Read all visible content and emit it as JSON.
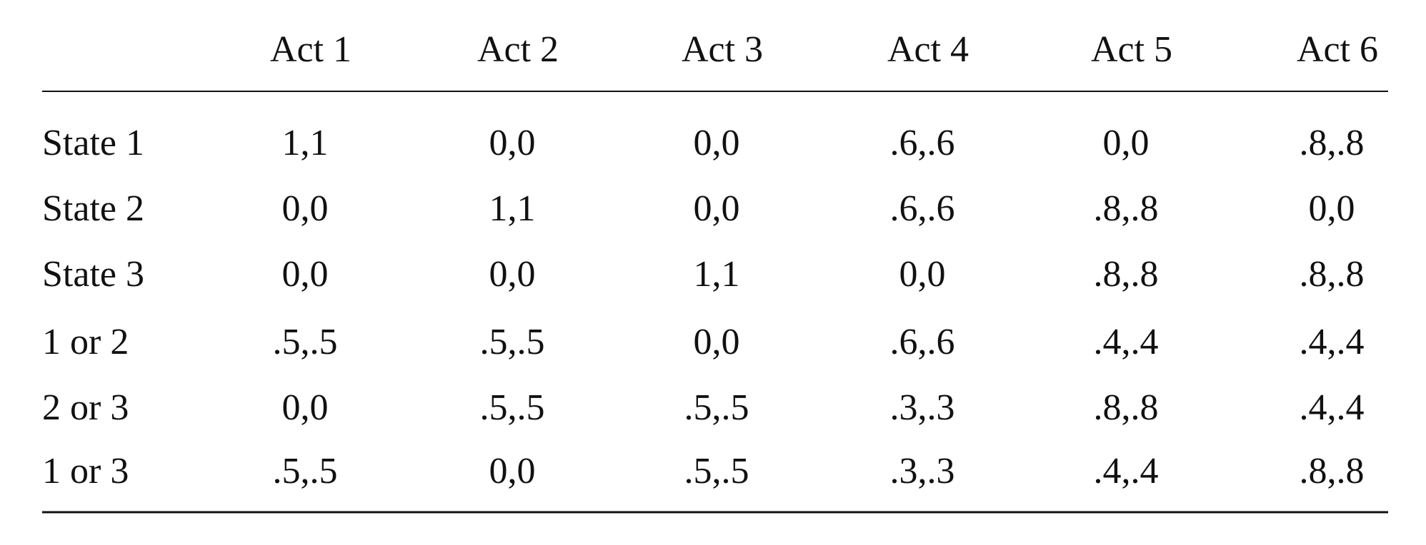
{
  "table": {
    "header": [
      "Act 1",
      "Act 2",
      "Act 3",
      "Act 4",
      "Act 5",
      "Act 6"
    ],
    "rows": [
      {
        "label": "State 1",
        "cells": [
          "1,1",
          "0,0",
          "0,0",
          ".6,.6",
          "0,0",
          ".8,.8"
        ]
      },
      {
        "label": "State 2",
        "cells": [
          "0,0",
          "1,1",
          "0,0",
          ".6,.6",
          ".8,.8",
          "0,0"
        ]
      },
      {
        "label": "State 3",
        "cells": [
          "0,0",
          "0,0",
          "1,1",
          "0,0",
          ".8,.8",
          ".8,.8"
        ]
      },
      {
        "label": "1 or 2",
        "cells": [
          ".5,.5",
          ".5,.5",
          "0,0",
          ".6,.6",
          ".4,.4",
          ".4,.4"
        ]
      },
      {
        "label": "2 or 3",
        "cells": [
          "0,0",
          ".5,.5",
          ".5,.5",
          ".3,.3",
          ".8,.8",
          ".4,.4"
        ]
      },
      {
        "label": "1 or 3",
        "cells": [
          ".5,.5",
          "0,0",
          ".5,.5",
          ".3,.3",
          ".4,.4",
          ".8,.8"
        ]
      }
    ]
  }
}
